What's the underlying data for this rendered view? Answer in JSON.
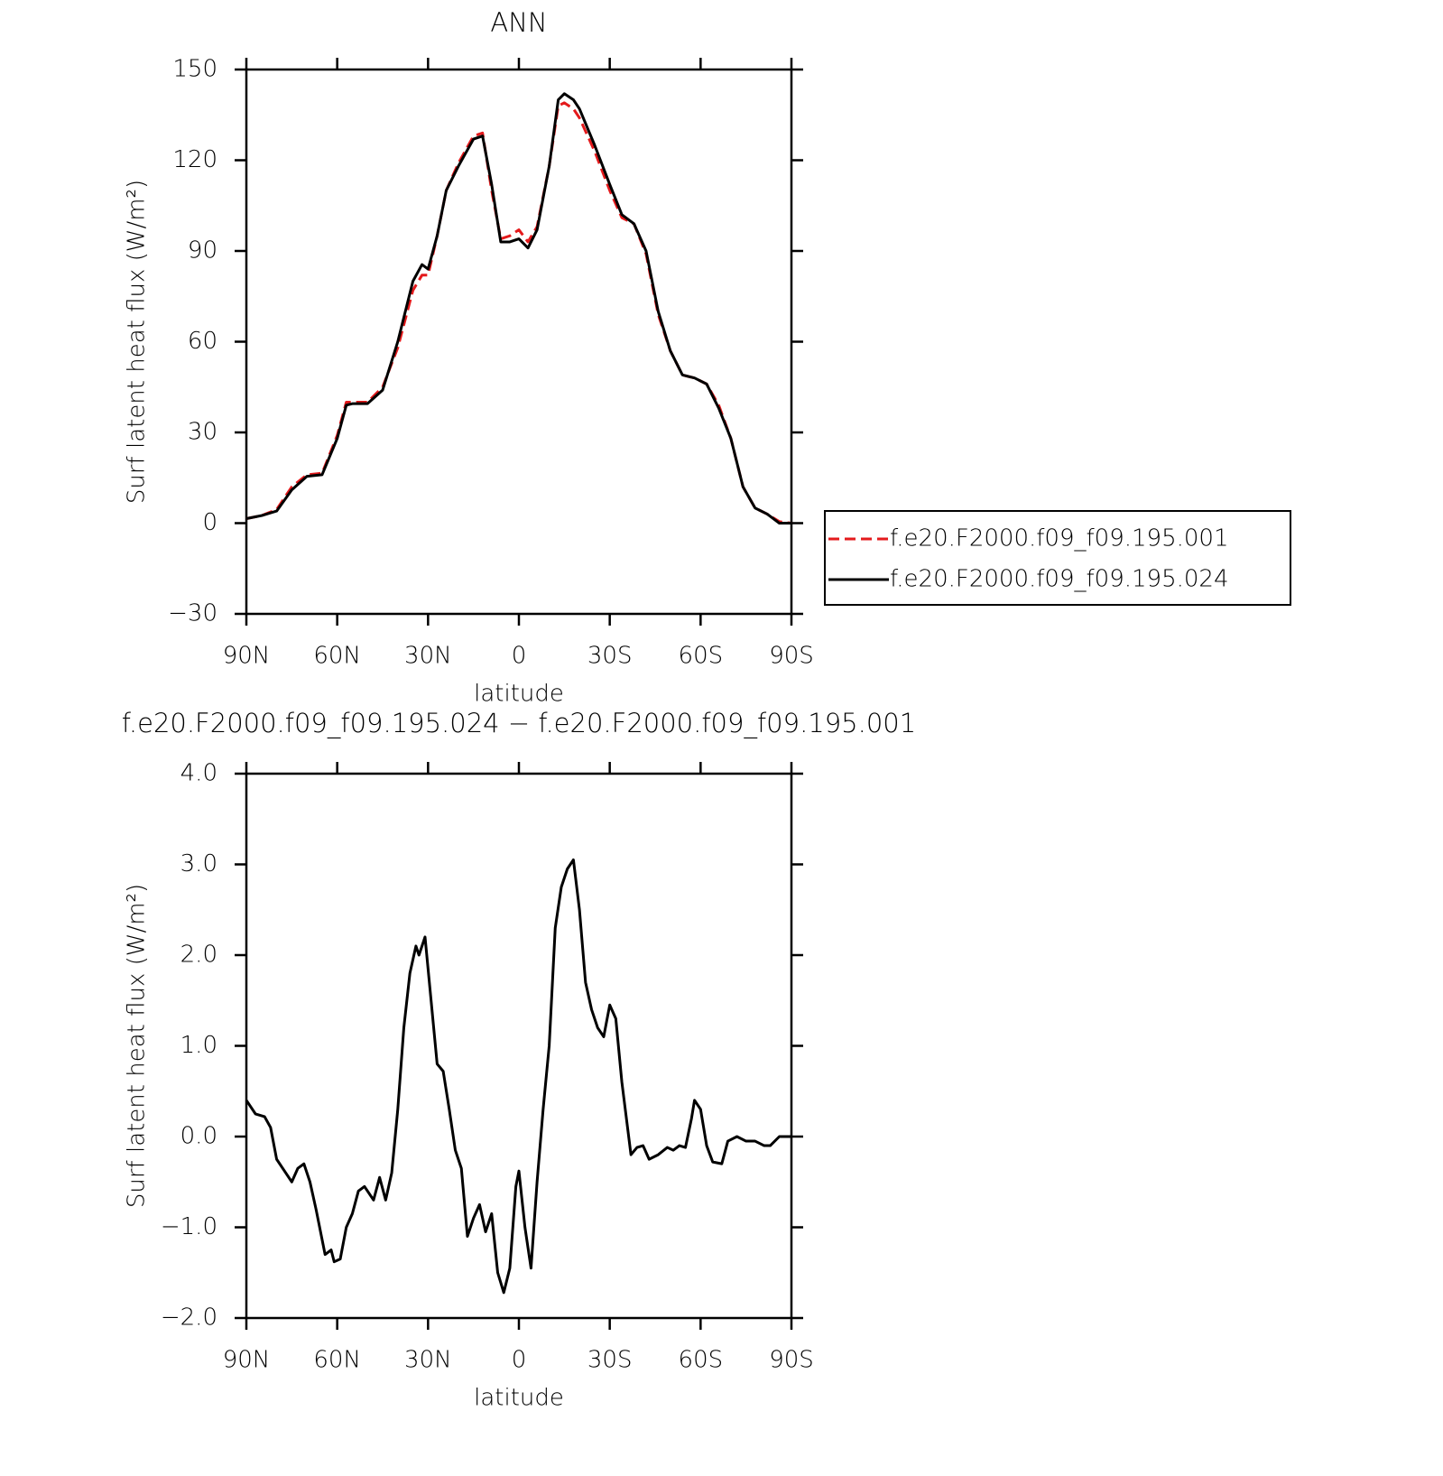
{
  "chart_data": [
    {
      "type": "line",
      "title": "ANN",
      "xlabel": "latitude",
      "ylabel": "Surf latent heat flux (W/m²)",
      "x": [
        90,
        85,
        80,
        75,
        70,
        65,
        60,
        57,
        55,
        50,
        45,
        40,
        35,
        32,
        30,
        27,
        24,
        20,
        15,
        12,
        9,
        6,
        3,
        0,
        -3,
        -6,
        -10,
        -13,
        -15,
        -18,
        -20,
        -25,
        -30,
        -34,
        -38,
        -42,
        -46,
        -50,
        -54,
        -58,
        -62,
        -66,
        -70,
        -74,
        -78,
        -82,
        -86,
        -90
      ],
      "series": [
        {
          "name": "f.e20.F2000.f09_f09.195.001",
          "color": "#e41a1c",
          "linestyle": "dashed",
          "values": [
            1.5,
            2.5,
            4.5,
            12,
            16,
            16.5,
            29,
            40,
            40,
            40,
            45,
            58,
            77,
            82,
            82,
            95,
            110,
            119,
            128,
            129,
            110,
            94,
            95,
            97,
            93,
            98,
            118,
            138,
            139,
            137,
            134,
            123,
            110,
            101,
            99,
            89,
            69,
            57,
            49,
            48,
            46,
            39,
            28,
            12,
            5,
            3,
            0.5,
            0
          ]
        },
        {
          "name": "f.e20.F2000.f09_f09.195.024",
          "color": "#000000",
          "linestyle": "solid",
          "values": [
            1.5,
            2.5,
            4,
            11,
            15.5,
            16,
            28,
            39,
            39.5,
            39.5,
            44,
            60,
            80,
            85.5,
            84,
            95,
            110,
            118,
            127,
            128,
            112,
            93,
            93,
            94,
            91,
            97,
            118,
            140,
            142,
            140,
            137,
            125,
            112,
            102,
            99,
            90,
            70,
            57,
            49,
            48,
            46,
            38,
            28,
            12,
            5,
            3,
            0,
            0
          ]
        }
      ],
      "xlim": [
        90,
        -90
      ],
      "xticks": [
        {
          "value": 90,
          "label": "90N"
        },
        {
          "value": 60,
          "label": "60N"
        },
        {
          "value": 30,
          "label": "30N"
        },
        0,
        {
          "value": -30,
          "label": "30S"
        },
        {
          "value": -60,
          "label": "60S"
        },
        {
          "value": -90,
          "label": "90S"
        }
      ],
      "ylim": [
        -30,
        150
      ],
      "yticks": [
        {
          "value": -30,
          "label": "−30"
        },
        0,
        30,
        60,
        90,
        120,
        150
      ],
      "legend": "right"
    },
    {
      "type": "line",
      "title": "f.e20.F2000.f09_f09.195.024 − f.e20.F2000.f09_f09.195.001",
      "xlabel": "latitude",
      "ylabel": "Surf latent heat flux (W/m²)",
      "x": [
        90,
        87,
        84,
        82,
        80,
        77,
        75,
        73,
        71,
        69,
        67,
        64,
        62,
        61,
        59,
        57,
        55,
        53,
        51,
        48,
        46,
        44,
        42,
        40,
        38,
        36,
        34,
        33,
        31,
        29,
        27,
        25,
        23,
        21,
        19,
        17,
        15,
        13,
        11,
        9,
        7,
        5,
        3,
        1,
        0,
        -2,
        -4,
        -6,
        -8,
        -10,
        -12,
        -14,
        -16,
        -18,
        -20,
        -22,
        -24,
        -26,
        -28,
        -30,
        -32,
        -34,
        -37,
        -39,
        -41,
        -43,
        -46,
        -49,
        -51,
        -53,
        -55,
        -57,
        -58,
        -60,
        -62,
        -64,
        -67,
        -69,
        -72,
        -75,
        -78,
        -81,
        -83,
        -86,
        -90
      ],
      "values": [
        0.4,
        0.25,
        0.22,
        0.1,
        -0.25,
        -0.4,
        -0.5,
        -0.35,
        -0.3,
        -0.5,
        -0.8,
        -1.3,
        -1.25,
        -1.38,
        -1.35,
        -1.0,
        -0.85,
        -0.6,
        -0.55,
        -0.7,
        -0.45,
        -0.7,
        -0.4,
        0.3,
        1.2,
        1.8,
        2.1,
        2.0,
        2.2,
        1.5,
        0.8,
        0.72,
        0.3,
        -0.15,
        -0.35,
        -1.1,
        -0.9,
        -0.75,
        -1.05,
        -0.85,
        -1.5,
        -1.72,
        -1.45,
        -0.55,
        -0.38,
        -1.0,
        -1.45,
        -0.5,
        0.3,
        1.0,
        2.3,
        2.75,
        2.95,
        3.05,
        2.5,
        1.7,
        1.4,
        1.2,
        1.1,
        1.45,
        1.3,
        0.6,
        -0.2,
        -0.12,
        -0.1,
        -0.25,
        -0.2,
        -0.12,
        -0.15,
        -0.1,
        -0.12,
        0.2,
        0.4,
        0.3,
        -0.1,
        -0.28,
        -0.3,
        -0.05,
        0.0,
        -0.05,
        -0.05,
        -0.1,
        -0.1,
        0.0,
        0.0
      ],
      "color": "#000000",
      "xlim": [
        90,
        -90
      ],
      "xticks": [
        {
          "value": 90,
          "label": "90N"
        },
        {
          "value": 60,
          "label": "60N"
        },
        {
          "value": 30,
          "label": "30N"
        },
        0,
        {
          "value": -30,
          "label": "30S"
        },
        {
          "value": -60,
          "label": "60S"
        },
        {
          "value": -90,
          "label": "90S"
        }
      ],
      "ylim": [
        -2,
        4
      ],
      "yticks": [
        {
          "value": -2,
          "label": "−2.0"
        },
        {
          "value": -1,
          "label": "−1.0"
        },
        {
          "value": 0,
          "label": "0.0"
        },
        {
          "value": 1,
          "label": "1.0"
        },
        {
          "value": 2,
          "label": "2.0"
        },
        {
          "value": 3,
          "label": "3.0"
        },
        {
          "value": 4,
          "label": "4.0"
        }
      ]
    }
  ]
}
